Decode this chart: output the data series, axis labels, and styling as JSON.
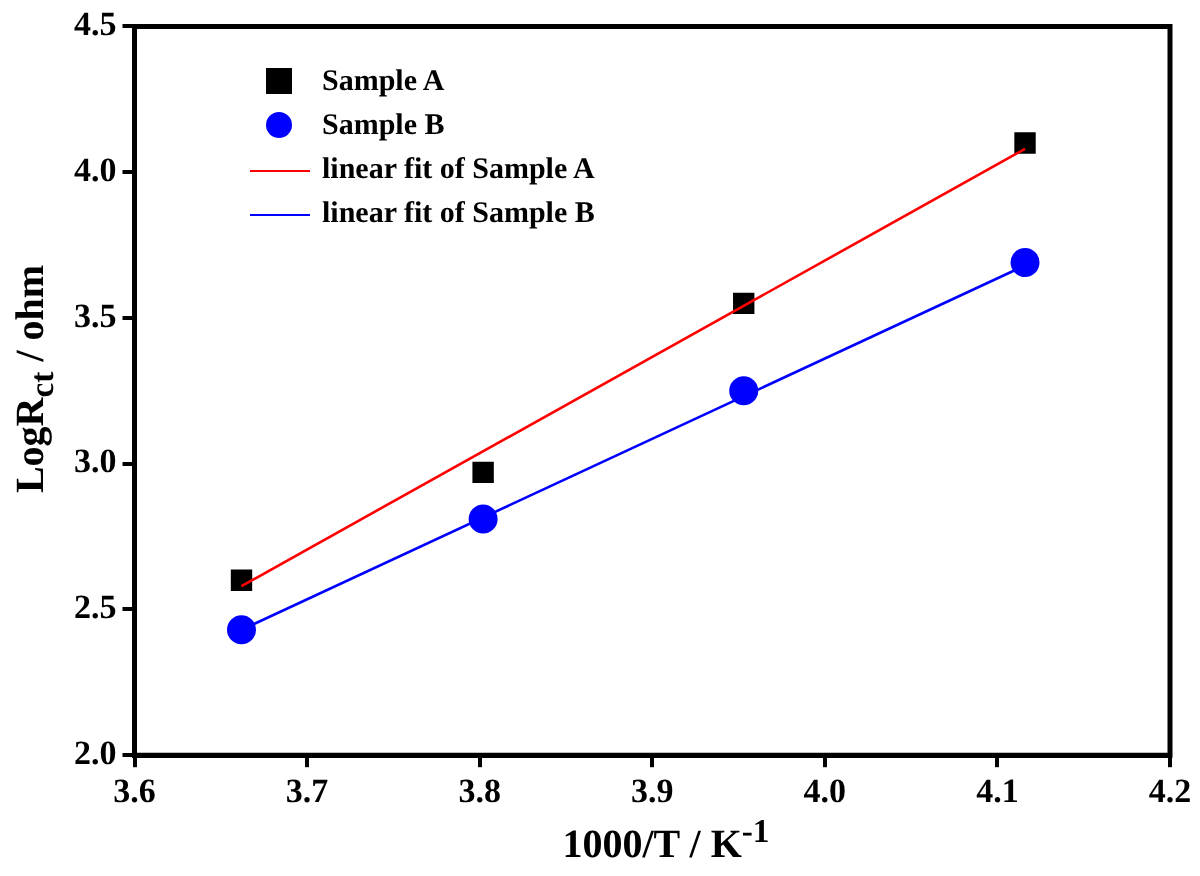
{
  "chart_data": {
    "type": "scatter",
    "xlabel": "1000/T / K$^{-1}$",
    "ylabel": "LogR$_{ct}$ / ohm",
    "xlim": [
      3.6,
      4.2
    ],
    "xticks": [
      3.6,
      3.7,
      3.8,
      3.9,
      {
        "value": 4,
        "label": "4.0"
      },
      4.1,
      4.2
    ],
    "ylim": [
      2.0,
      4.5
    ],
    "yticks": [
      {
        "value": 2,
        "label": "2.0"
      },
      2.5,
      {
        "value": 3,
        "label": "3.0"
      },
      3.5,
      {
        "value": 4,
        "label": "4.0"
      },
      4.5
    ],
    "grid": false,
    "legend": "top left",
    "series": [
      {
        "name": "Sample A",
        "marker": "square",
        "color": "#000000",
        "x": [
          3.662,
          3.802,
          3.953,
          4.116
        ],
        "values": [
          2.6,
          2.97,
          3.55,
          4.1
        ]
      },
      {
        "name": "Sample B",
        "marker": "circle",
        "color": "#0000ff",
        "x": [
          3.662,
          3.802,
          3.953,
          4.116
        ],
        "values": [
          2.43,
          2.81,
          3.25,
          3.69
        ]
      },
      {
        "name": "linear fit of Sample A",
        "type": "line",
        "marker": "none",
        "color": "#ff0000",
        "x": [
          3.662,
          4.116
        ],
        "values": [
          2.58,
          4.08
        ]
      },
      {
        "name": "linear fit of Sample B",
        "type": "line",
        "marker": "none",
        "color": "#0000ff",
        "x": [
          3.662,
          4.116
        ],
        "values": [
          2.43,
          3.68
        ]
      }
    ]
  }
}
